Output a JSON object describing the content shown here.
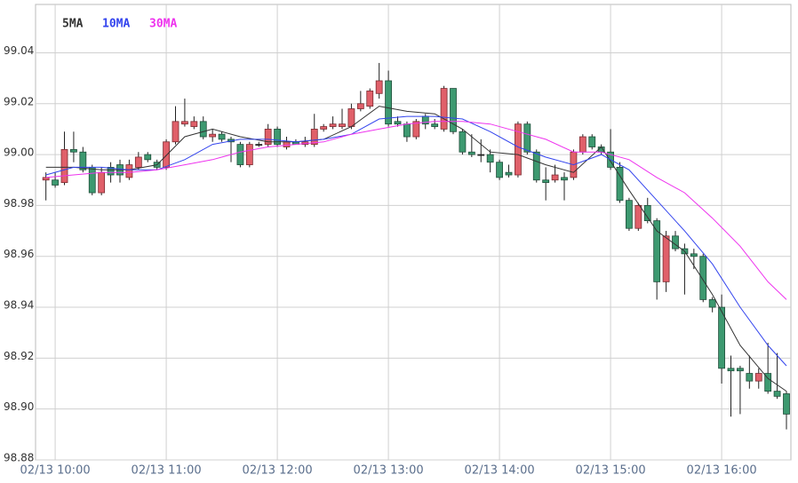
{
  "chart_data": {
    "type": "candlestick",
    "legend": "top-left",
    "grid": true,
    "up_color": "#e0606a",
    "down_color": "#3d9970",
    "xlim": [
      589.4,
      997.4
    ],
    "ylim": [
      98.88,
      99.059
    ],
    "yticks": [
      98.88,
      {
        "value": 98.9,
        "label": "98.90"
      },
      98.92,
      98.94,
      98.96,
      98.98,
      {
        "value": 99.0,
        "label": "99.00"
      },
      99.02,
      99.04
    ],
    "xticks": [
      {
        "value": 600,
        "label": "02/13 10:00"
      },
      {
        "value": 660,
        "label": "02/13 11:00"
      },
      {
        "value": 720,
        "label": "02/13 12:00"
      },
      {
        "value": 780,
        "label": "02/13 13:00"
      },
      {
        "value": 840,
        "label": "02/13 14:00"
      },
      {
        "value": 900,
        "label": "02/13 15:00"
      },
      {
        "value": 960,
        "label": "02/13 16:00"
      }
    ],
    "x": [
      595,
      600,
      605,
      610,
      615,
      620,
      625,
      630,
      635,
      640,
      645,
      650,
      655,
      660,
      665,
      670,
      675,
      680,
      685,
      690,
      695,
      700,
      705,
      710,
      715,
      720,
      725,
      730,
      735,
      740,
      745,
      750,
      755,
      760,
      765,
      770,
      775,
      780,
      785,
      790,
      795,
      800,
      805,
      810,
      815,
      820,
      825,
      830,
      835,
      840,
      845,
      850,
      855,
      860,
      865,
      870,
      875,
      880,
      885,
      890,
      895,
      900,
      905,
      910,
      915,
      920,
      925,
      930,
      935,
      940,
      945,
      950,
      955,
      960,
      965,
      970,
      975,
      980,
      985,
      990,
      995
    ],
    "open": [
      98.99,
      98.99,
      98.989,
      99.002,
      99.001,
      98.995,
      98.985,
      98.995,
      98.996,
      98.991,
      98.995,
      99.0,
      98.997,
      98.995,
      99.005,
      99.012,
      99.011,
      99.013,
      99.007,
      99.008,
      99.006,
      99.004,
      98.996,
      99.004,
      99.004,
      99.01,
      99.003,
      99.005,
      99.004,
      99.004,
      99.01,
      99.011,
      99.011,
      99.011,
      99.018,
      99.019,
      99.024,
      99.029,
      99.013,
      99.012,
      99.007,
      99.015,
      99.012,
      99.01,
      99.026,
      99.009,
      99.001,
      99.0,
      99.0,
      98.997,
      98.993,
      98.992,
      99.012,
      99.001,
      98.99,
      98.99,
      98.991,
      98.991,
      99.001,
      99.007,
      99.003,
      99.001,
      98.995,
      98.982,
      98.971,
      98.98,
      98.974,
      98.95,
      98.968,
      98.963,
      98.961,
      98.96,
      98.943,
      98.94,
      98.916,
      98.916,
      98.914,
      98.911,
      98.914,
      98.907,
      98.906
    ],
    "high": [
      98.993,
      98.993,
      99.009,
      99.009,
      99.003,
      98.996,
      98.995,
      98.997,
      98.998,
      98.998,
      99.001,
      99.001,
      98.998,
      99.006,
      99.019,
      99.022,
      99.015,
      99.015,
      99.01,
      99.009,
      99.007,
      99.005,
      99.005,
      99.005,
      99.012,
      99.011,
      99.007,
      99.006,
      99.007,
      99.016,
      99.012,
      99.015,
      99.018,
      99.02,
      99.025,
      99.026,
      99.036,
      99.033,
      99.015,
      99.013,
      99.014,
      99.016,
      99.014,
      99.027,
      99.026,
      99.01,
      99.008,
      99.006,
      99.002,
      98.998,
      98.996,
      99.013,
      99.013,
      99.002,
      98.995,
      98.996,
      98.993,
      99.002,
      99.008,
      99.008,
      99.004,
      99.01,
      98.997,
      98.983,
      98.981,
      98.983,
      98.975,
      98.97,
      98.97,
      98.965,
      98.963,
      98.961,
      98.944,
      98.945,
      98.921,
      98.917,
      98.921,
      98.916,
      98.926,
      98.922,
      98.907
    ],
    "low": [
      98.982,
      98.987,
      98.988,
      98.997,
      98.993,
      98.984,
      98.984,
      98.989,
      98.989,
      98.99,
      98.994,
      98.997,
      98.994,
      98.994,
      99.004,
      99.011,
      99.01,
      99.006,
      99.005,
      99.005,
      98.997,
      98.995,
      98.995,
      99.003,
      99.003,
      99.003,
      99.002,
      99.004,
      99.003,
      99.003,
      99.009,
      99.01,
      99.01,
      99.01,
      99.017,
      99.018,
      99.022,
      99.011,
      99.011,
      99.005,
      99.006,
      99.01,
      99.01,
      99.009,
      99.008,
      99.0,
      98.999,
      98.997,
      98.993,
      98.99,
      98.991,
      98.991,
      99.0,
      98.989,
      98.982,
      98.989,
      98.982,
      98.99,
      99.0,
      99.002,
      99.0,
      98.994,
      98.981,
      98.97,
      98.97,
      98.973,
      98.943,
      98.946,
      98.962,
      98.945,
      98.955,
      98.942,
      98.938,
      98.91,
      98.897,
      98.898,
      98.908,
      98.908,
      98.906,
      98.904,
      98.892
    ],
    "close": [
      98.991,
      98.988,
      99.002,
      99.001,
      98.994,
      98.985,
      98.993,
      98.992,
      98.992,
      98.996,
      98.999,
      98.998,
      98.995,
      99.005,
      99.013,
      99.013,
      99.013,
      99.007,
      99.008,
      99.006,
      99.005,
      98.996,
      99.004,
      99.004,
      99.01,
      99.004,
      99.005,
      99.004,
      99.005,
      99.01,
      99.011,
      99.012,
      99.012,
      99.018,
      99.02,
      99.025,
      99.029,
      99.012,
      99.012,
      99.007,
      99.013,
      99.012,
      99.011,
      99.026,
      99.009,
      99.001,
      99.0,
      99.0,
      98.997,
      98.991,
      98.992,
      99.012,
      99.001,
      98.99,
      98.989,
      98.992,
      98.99,
      99.001,
      99.007,
      99.003,
      99.001,
      98.995,
      98.982,
      98.971,
      98.98,
      98.974,
      98.95,
      98.968,
      98.963,
      98.961,
      98.96,
      98.943,
      98.94,
      98.916,
      98.915,
      98.915,
      98.911,
      98.914,
      98.907,
      98.905,
      98.898
    ],
    "series": [
      {
        "name": "5MA",
        "color": "#333333",
        "x": [
          595,
          610,
          625,
          640,
          655,
          670,
          685,
          700,
          715,
          730,
          745,
          760,
          775,
          790,
          805,
          820,
          835,
          850,
          865,
          880,
          895,
          910,
          925,
          940,
          955,
          970,
          985,
          995
        ],
        "values": [
          98.995,
          98.995,
          98.994,
          98.994,
          98.996,
          99.007,
          99.01,
          99.007,
          99.005,
          99.005,
          99.006,
          99.011,
          99.019,
          99.017,
          99.016,
          99.01,
          99.001,
          99.0,
          98.996,
          98.993,
          99.003,
          98.986,
          98.97,
          98.962,
          98.945,
          98.925,
          98.912,
          98.907
        ]
      },
      {
        "name": "10MA",
        "color": "#3344ee",
        "x": [
          595,
          610,
          625,
          640,
          655,
          670,
          685,
          700,
          715,
          730,
          745,
          760,
          775,
          790,
          805,
          820,
          835,
          850,
          865,
          880,
          895,
          910,
          925,
          940,
          955,
          970,
          985,
          995
        ],
        "values": [
          98.992,
          98.995,
          98.995,
          98.994,
          98.994,
          98.998,
          99.004,
          99.006,
          99.006,
          99.005,
          99.006,
          99.008,
          99.014,
          99.015,
          99.015,
          99.014,
          99.009,
          99.003,
          98.999,
          98.996,
          99.0,
          98.994,
          98.982,
          98.97,
          98.957,
          98.94,
          98.925,
          98.917
        ]
      },
      {
        "name": "30MA",
        "color": "#ee33ee",
        "x": [
          595,
          610,
          625,
          640,
          655,
          670,
          685,
          700,
          715,
          730,
          745,
          760,
          775,
          790,
          805,
          820,
          835,
          850,
          865,
          880,
          895,
          910,
          925,
          940,
          955,
          970,
          985,
          995
        ],
        "values": [
          98.991,
          98.992,
          98.993,
          98.993,
          98.994,
          98.996,
          98.998,
          99.001,
          99.003,
          99.004,
          99.005,
          99.008,
          99.01,
          99.012,
          99.013,
          99.013,
          99.012,
          99.009,
          99.006,
          99.001,
          99.001,
          98.998,
          98.991,
          98.985,
          98.975,
          98.964,
          98.95,
          98.943
        ]
      }
    ]
  }
}
